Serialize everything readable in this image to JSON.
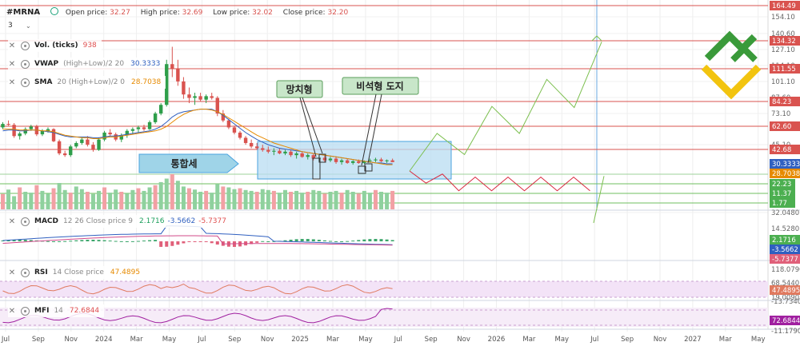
{
  "header": {
    "ticker": "#MRNA",
    "open_label": "Open price:",
    "open": "32.27",
    "high_label": "High price:",
    "high": "32.69",
    "low_label": "Low price:",
    "low": "32.02",
    "close_label": "Close price:",
    "close": "32.20",
    "timeframe": "3"
  },
  "indicators": {
    "vol": {
      "name": "Vol. (ticks)",
      "value": "938"
    },
    "vwap": {
      "name": "VWAP",
      "params": "(High+Low)/2 20",
      "value": "30.3333"
    },
    "sma": {
      "name": "SMA",
      "params": "20 (High+Low)/2 0",
      "value": "28.7038"
    },
    "macd": {
      "name": "MACD",
      "params": "12 26 Close price 9",
      "v1": "2.1716",
      "v2": "-3.5662",
      "v3": "-5.7377"
    },
    "rsi": {
      "name": "RSI",
      "params": "14 Close price",
      "value": "47.4895"
    },
    "mfi": {
      "name": "MFI",
      "params": "14",
      "value": "72.6844"
    }
  },
  "annotations": {
    "pennant": "망치형",
    "doji": "비석형 도지",
    "consolidation": "통합세"
  },
  "colors": {
    "up": "#2e9e4a",
    "down": "#d9534f",
    "level_red": "#d9534f",
    "level_green": "#6fbf5f",
    "zone_fill": "#b8dcf2",
    "vwap": "#3060c0",
    "sma": "#e68a00",
    "projection_up": "#7cbf4f",
    "projection_down": "#d9263c",
    "logo_green": "#3a9a3a",
    "logo_yellow": "#f2c40f"
  },
  "chart_data": {
    "type": "candlestick",
    "price_axis": {
      "ticks": [
        "154.10",
        "140.60",
        "127.10",
        "114.10",
        "101.10",
        "87.60",
        "73.10",
        "45.10",
        "32.0480"
      ],
      "levels_red": [
        "164.49",
        "134.32",
        "111.55",
        "84.23",
        "62.60",
        "42.68"
      ],
      "levels_green": [
        "22.23",
        "11.37",
        "1.77"
      ],
      "last_vwap": "30.3333",
      "last_sma": "28.7038"
    },
    "macd_axis": {
      "ticks": [
        "14.5280"
      ],
      "labels": [
        "2.1716",
        "-3.5662",
        "-5.7377"
      ]
    },
    "rsi_axis": {
      "ticks": [
        "118.0790",
        "68.5440",
        "19.0090"
      ],
      "labels": [
        "47.4895",
        "-13.7340"
      ]
    },
    "mfi_axis": {
      "labels": [
        "72.6844",
        "-11.1790"
      ]
    },
    "x_ticks": [
      "Jul",
      "Sep",
      "Nov",
      "2024",
      "Mar",
      "May",
      "Jul",
      "Sep",
      "Nov",
      "2025",
      "Mar",
      "May",
      "Jul",
      "Sep",
      "Nov",
      "2026",
      "Mar",
      "May",
      "Jul",
      "Sep",
      "Nov",
      "2027",
      "Mar",
      "May"
    ],
    "candles": [
      [
        72,
        78,
        70,
        76
      ],
      [
        76,
        80,
        74,
        75
      ],
      [
        75,
        77,
        60,
        62
      ],
      [
        62,
        67,
        58,
        65
      ],
      [
        65,
        72,
        63,
        70
      ],
      [
        70,
        75,
        68,
        73
      ],
      [
        73,
        75,
        62,
        64
      ],
      [
        64,
        70,
        62,
        68
      ],
      [
        68,
        72,
        66,
        70
      ],
      [
        70,
        71,
        55,
        56
      ],
      [
        56,
        58,
        40,
        42
      ],
      [
        42,
        45,
        38,
        40
      ],
      [
        40,
        52,
        38,
        50
      ],
      [
        50,
        56,
        48,
        54
      ],
      [
        54,
        60,
        52,
        58
      ],
      [
        58,
        62,
        50,
        52
      ],
      [
        52,
        55,
        44,
        46
      ],
      [
        46,
        60,
        45,
        58
      ],
      [
        58,
        68,
        56,
        66
      ],
      [
        66,
        70,
        62,
        64
      ],
      [
        64,
        66,
        56,
        58
      ],
      [
        58,
        65,
        55,
        63
      ],
      [
        63,
        70,
        60,
        68
      ],
      [
        68,
        72,
        64,
        70
      ],
      [
        70,
        74,
        66,
        72
      ],
      [
        72,
        75,
        68,
        70
      ],
      [
        70,
        80,
        69,
        78
      ],
      [
        78,
        90,
        76,
        88
      ],
      [
        88,
        100,
        86,
        98
      ],
      [
        98,
        150,
        96,
        145
      ],
      [
        145,
        165,
        130,
        140
      ],
      [
        140,
        150,
        120,
        125
      ],
      [
        125,
        130,
        105,
        110
      ],
      [
        110,
        118,
        100,
        106
      ],
      [
        106,
        112,
        98,
        108
      ],
      [
        108,
        112,
        102,
        104
      ],
      [
        104,
        110,
        100,
        108
      ],
      [
        108,
        112,
        104,
        106
      ],
      [
        106,
        108,
        85,
        88
      ],
      [
        88,
        92,
        78,
        80
      ],
      [
        80,
        82,
        70,
        72
      ],
      [
        72,
        74,
        64,
        66
      ],
      [
        66,
        68,
        58,
        60
      ],
      [
        60,
        62,
        52,
        54
      ],
      [
        54,
        58,
        48,
        50
      ],
      [
        50,
        54,
        46,
        48
      ],
      [
        48,
        52,
        44,
        46
      ],
      [
        46,
        50,
        42,
        44
      ],
      [
        44,
        48,
        40,
        45
      ],
      [
        45,
        48,
        41,
        42
      ],
      [
        42,
        46,
        40,
        44
      ],
      [
        44,
        46,
        38,
        40
      ],
      [
        40,
        44,
        36,
        42
      ],
      [
        42,
        44,
        37,
        38
      ],
      [
        38,
        42,
        35,
        40
      ],
      [
        40,
        42,
        34,
        36
      ],
      [
        36,
        40,
        33,
        37
      ],
      [
        37,
        40,
        32,
        34
      ],
      [
        34,
        38,
        32,
        36
      ],
      [
        36,
        38,
        30,
        32
      ],
      [
        32,
        36,
        29,
        34
      ],
      [
        34,
        36,
        30,
        31
      ],
      [
        31,
        34,
        29,
        33
      ],
      [
        33,
        35,
        30,
        31
      ],
      [
        31,
        34,
        30,
        33
      ],
      [
        33,
        36,
        31,
        34
      ],
      [
        34,
        37,
        32,
        35
      ],
      [
        35,
        37,
        32,
        33
      ],
      [
        33,
        35,
        31,
        34
      ],
      [
        34,
        36,
        32,
        32
      ]
    ],
    "vwap": [
      68,
      69,
      69,
      68,
      68,
      69,
      69,
      68,
      67,
      66,
      64,
      62,
      61,
      61,
      61,
      61,
      60,
      60,
      61,
      62,
      62,
      63,
      64,
      65,
      66,
      67,
      68,
      70,
      73,
      78,
      84,
      88,
      90,
      91,
      92,
      93,
      93,
      93,
      90,
      86,
      81,
      76,
      71,
      66,
      62,
      58,
      55,
      52,
      50,
      48,
      47,
      46,
      45,
      44,
      43,
      42,
      41,
      40,
      39,
      38,
      37,
      36,
      35,
      34,
      33,
      32,
      31,
      31,
      30,
      30
    ],
    "sma": [
      70,
      70,
      70,
      69,
      69,
      69,
      69,
      68,
      68,
      67,
      65,
      63,
      62,
      61,
      60,
      60,
      59,
      59,
      60,
      61,
      61,
      62,
      63,
      64,
      65,
      66,
      67,
      68,
      70,
      73,
      78,
      83,
      87,
      90,
      92,
      93,
      93,
      92,
      90,
      87,
      83,
      79,
      75,
      71,
      67,
      63,
      60,
      57,
      54,
      52,
      50,
      48,
      46,
      44,
      43,
      42,
      41,
      40,
      39,
      38,
      37,
      36,
      35,
      34,
      33,
      32,
      31,
      30,
      29,
      29
    ],
    "volume": [
      35,
      45,
      30,
      50,
      40,
      38,
      55,
      42,
      36,
      48,
      60,
      44,
      38,
      52,
      46,
      40,
      35,
      42,
      50,
      38,
      45,
      40,
      36,
      44,
      48,
      42,
      50,
      55,
      62,
      70,
      80,
      65,
      52,
      48,
      45,
      40,
      42,
      38,
      58,
      52,
      50,
      46,
      48,
      44,
      42,
      40,
      46,
      44,
      42,
      38,
      44,
      40,
      42,
      38,
      40,
      44,
      42,
      36,
      40,
      42,
      38,
      44,
      40,
      36,
      42,
      38,
      44,
      40,
      38,
      42
    ],
    "projection_down": [
      [
        0,
        30
      ],
      [
        1,
        22
      ],
      [
        2,
        28
      ],
      [
        3,
        17
      ],
      [
        4,
        26
      ],
      [
        5,
        17
      ],
      [
        6,
        26
      ],
      [
        7,
        17
      ],
      [
        8,
        26
      ],
      [
        9,
        17
      ],
      [
        10,
        26
      ],
      [
        11,
        17
      ]
    ],
    "projection_up": [
      [
        0,
        30
      ],
      [
        1,
        62
      ],
      [
        2,
        44
      ],
      [
        3,
        85
      ],
      [
        4,
        62
      ],
      [
        5,
        108
      ],
      [
        6,
        84
      ],
      [
        7,
        140
      ]
    ],
    "projection_up2": [
      [
        0,
        12
      ],
      [
        1,
        45
      ]
    ]
  }
}
